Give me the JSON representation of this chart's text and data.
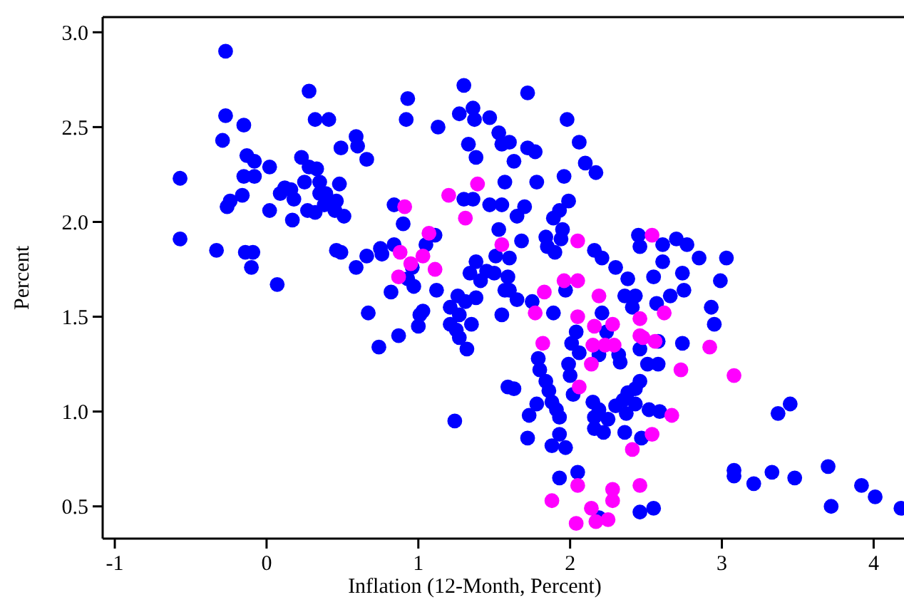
{
  "chart_data": {
    "type": "scatter",
    "xlabel": "Inflation (12-Month, Percent)",
    "ylabel": "Percent",
    "xlim": [
      -1.08,
      4.2
    ],
    "ylim": [
      0.33,
      3.08
    ],
    "xticks": [
      -1,
      0,
      1,
      2,
      3,
      4
    ],
    "yticks": [
      {
        "value": 0.5,
        "label": "0.5"
      },
      {
        "value": 1,
        "label": "1.0"
      },
      {
        "value": 1.5,
        "label": "1.5"
      },
      {
        "value": 2,
        "label": "2.0"
      },
      {
        "value": 2.5,
        "label": "2.5"
      },
      {
        "value": 3,
        "label": "3.0"
      }
    ],
    "grid": false,
    "marker": "circle",
    "series": [
      {
        "color": "#0000ff",
        "x": [
          -0.27,
          0.28,
          0.93,
          -0.27,
          -0.15,
          0.32,
          0.41,
          0.92,
          1.13,
          -0.29,
          0.59,
          0.6,
          0.49,
          0.66,
          -0.13,
          -0.08,
          0.02,
          0.23,
          0.28,
          0.33,
          -0.15,
          -0.08,
          -0.57,
          0.25,
          0.35,
          0.48,
          0.12,
          0.09,
          0.16,
          0.18,
          0.35,
          0.39,
          0.46,
          -0.16,
          -0.24,
          -0.26,
          0.02,
          0.27,
          0.32,
          0.38,
          0.45,
          0.51,
          0.17,
          0.84,
          0.9,
          -0.57,
          -0.33,
          -0.14,
          -0.09,
          -0.1,
          0.46,
          0.49,
          0.59,
          0.66,
          0.75,
          0.76,
          0.84,
          1.05,
          1.11,
          0.96,
          0.07,
          1.3,
          1.72,
          1.27,
          1.36,
          1.37,
          1.47,
          1.53,
          1.55,
          1.6,
          1.33,
          1.38,
          1.63,
          1.72,
          1.77,
          1.98,
          2.06,
          2.1,
          2.17,
          1.57,
          1.78,
          1.96,
          1.3,
          1.36,
          1.47,
          1.55,
          1.7,
          1.65,
          1.99,
          1.93,
          1.89,
          1.53,
          1.68,
          1.84,
          1.85,
          1.9,
          1.95,
          1.94,
          2.16,
          2.21,
          2.3,
          2.38,
          2.45,
          2.46,
          2.61,
          2.7,
          2.77,
          2.85,
          3.03,
          2.61,
          2.55,
          2.74,
          2.99,
          1.38,
          1.51,
          1.6,
          1.34,
          1.45,
          1.5,
          1.59,
          2.75,
          2.66,
          2.57,
          2.93,
          2.95,
          2.43,
          2.36,
          2.41,
          1.41,
          1.6,
          1.65,
          1.57,
          1.12,
          0.97,
          0.93,
          0.87,
          1.0,
          1.03,
          1.01,
          1.21,
          1.26,
          1.31,
          1.38,
          1.27,
          1.21,
          1.25,
          1.27,
          1.35,
          1.32,
          1.55,
          1.75,
          1.89,
          1.97,
          2.04,
          2.01,
          2.06,
          2.19,
          2.21,
          2.24,
          2.32,
          2.33,
          2.46,
          2.51,
          2.58,
          2.74,
          2.58,
          1.79,
          1.8,
          1.99,
          2.0,
          1.59,
          1.63,
          1.84,
          1.86,
          1.78,
          1.88,
          1.91,
          1.93,
          1.73,
          1.72,
          1.93,
          1.88,
          1.97,
          2.02,
          2.15,
          2.19,
          2.16,
          2.16,
          2.22,
          2.25,
          2.3,
          2.35,
          2.38,
          2.43,
          2.46,
          2.37,
          2.43,
          2.52,
          2.59,
          2.36,
          2.47,
          1.24,
          1.93,
          2.05,
          2.46,
          2.55,
          3.08,
          3.08,
          3.21,
          2.19,
          3.33,
          3.48,
          3.7,
          3.72,
          3.92,
          4.01,
          4.18,
          3.37,
          3.45,
          0.67,
          0.74,
          0.82
        ],
        "values": [
          2.9,
          2.69,
          2.65,
          2.56,
          2.51,
          2.54,
          2.54,
          2.54,
          2.5,
          2.43,
          2.45,
          2.4,
          2.39,
          2.33,
          2.35,
          2.32,
          2.29,
          2.34,
          2.29,
          2.28,
          2.24,
          2.24,
          2.23,
          2.21,
          2.21,
          2.2,
          2.18,
          2.15,
          2.17,
          2.12,
          2.15,
          2.15,
          2.11,
          2.14,
          2.11,
          2.08,
          2.06,
          2.06,
          2.05,
          2.09,
          2.06,
          2.03,
          2.01,
          2.09,
          1.99,
          1.91,
          1.85,
          1.84,
          1.84,
          1.76,
          1.85,
          1.84,
          1.76,
          1.82,
          1.86,
          1.83,
          1.88,
          1.88,
          1.93,
          1.76,
          1.67,
          2.72,
          2.68,
          2.57,
          2.6,
          2.54,
          2.55,
          2.47,
          2.41,
          2.42,
          2.41,
          2.34,
          2.32,
          2.39,
          2.37,
          2.54,
          2.42,
          2.31,
          2.26,
          2.21,
          2.21,
          2.24,
          2.12,
          2.12,
          2.09,
          2.09,
          2.08,
          2.03,
          2.11,
          2.06,
          2.02,
          1.96,
          1.9,
          1.92,
          1.87,
          1.84,
          1.96,
          1.91,
          1.85,
          1.81,
          1.76,
          1.7,
          1.93,
          1.87,
          1.88,
          1.91,
          1.88,
          1.81,
          1.81,
          1.79,
          1.71,
          1.73,
          1.69,
          1.79,
          1.82,
          1.81,
          1.73,
          1.74,
          1.73,
          1.71,
          1.64,
          1.61,
          1.57,
          1.55,
          1.46,
          1.61,
          1.61,
          1.55,
          1.69,
          1.64,
          1.59,
          1.64,
          1.64,
          1.66,
          1.7,
          1.4,
          1.45,
          1.53,
          1.51,
          1.55,
          1.61,
          1.58,
          1.6,
          1.51,
          1.46,
          1.43,
          1.39,
          1.46,
          1.33,
          1.51,
          1.58,
          1.52,
          1.64,
          1.42,
          1.36,
          1.31,
          1.3,
          1.52,
          1.42,
          1.3,
          1.26,
          1.33,
          1.25,
          1.25,
          1.36,
          1.37,
          1.28,
          1.22,
          1.25,
          1.19,
          1.13,
          1.12,
          1.16,
          1.11,
          1.04,
          1.05,
          1.01,
          0.97,
          0.98,
          0.86,
          0.88,
          0.82,
          0.81,
          1.09,
          1.05,
          1.01,
          0.97,
          0.91,
          0.89,
          0.96,
          1.03,
          1.06,
          1.1,
          1.12,
          1.16,
          0.99,
          1.04,
          1.01,
          1.0,
          0.89,
          0.86,
          0.95,
          0.65,
          0.68,
          0.47,
          0.49,
          0.69,
          0.66,
          0.62,
          0.44,
          0.68,
          0.65,
          0.71,
          0.5,
          0.61,
          0.55,
          0.49,
          0.99,
          1.04,
          1.52,
          1.34,
          1.63
        ]
      },
      {
        "color": "#ff00ff",
        "x": [
          0.91,
          1.2,
          1.07,
          0.88,
          0.95,
          1.03,
          1.11,
          0.87,
          1.39,
          1.31,
          1.55,
          2.05,
          2.54,
          1.96,
          2.05,
          1.83,
          1.77,
          2.19,
          2.05,
          2.16,
          2.28,
          2.46,
          2.62,
          1.82,
          2.15,
          2.23,
          2.29,
          2.46,
          2.48,
          2.56,
          2.92,
          2.73,
          2.14,
          3.08,
          2.06,
          2.67,
          2.54,
          2.41,
          2.05,
          1.88,
          2.28,
          2.28,
          2.46,
          2.14,
          2.17,
          2.25,
          2.04
        ],
        "values": [
          2.08,
          2.14,
          1.94,
          1.84,
          1.78,
          1.82,
          1.75,
          1.71,
          2.2,
          2.02,
          1.88,
          1.9,
          1.93,
          1.69,
          1.69,
          1.63,
          1.52,
          1.61,
          1.5,
          1.45,
          1.46,
          1.49,
          1.52,
          1.36,
          1.35,
          1.35,
          1.35,
          1.4,
          1.39,
          1.37,
          1.34,
          1.22,
          1.25,
          1.19,
          1.13,
          0.98,
          0.88,
          0.8,
          0.61,
          0.53,
          0.59,
          0.53,
          0.61,
          0.49,
          0.42,
          0.43,
          0.41
        ]
      }
    ]
  }
}
